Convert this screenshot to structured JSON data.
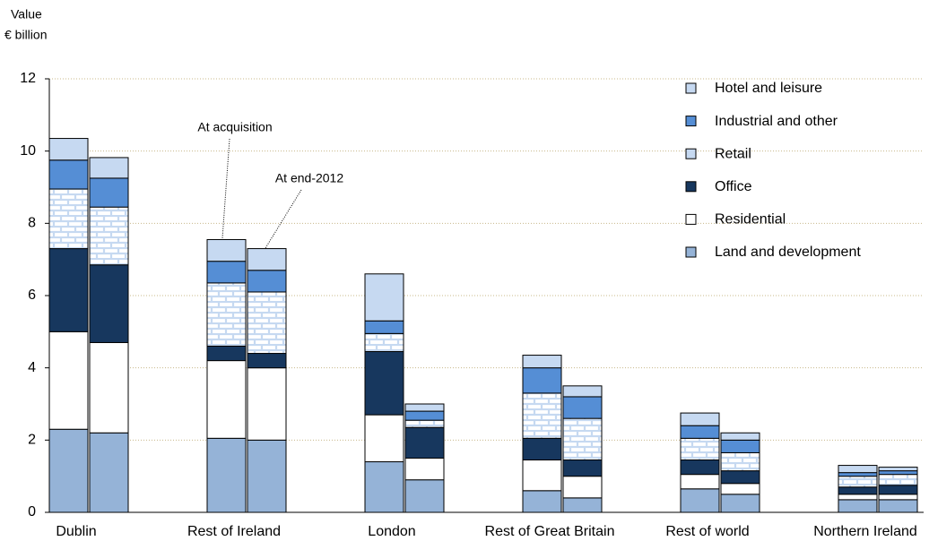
{
  "chart_data": {
    "type": "grouped_stacked_bar",
    "y_axis_label": [
      "Value",
      "€ billion"
    ],
    "categories": [
      "Dublin",
      "Rest of Ireland",
      "London",
      "Rest of Great Britain",
      "Rest of world",
      "Northern Ireland"
    ],
    "annotations": [
      "At acquisition",
      "At end-2012"
    ],
    "ylim": [
      0,
      12
    ],
    "yticks": [
      0,
      2,
      4,
      6,
      8,
      10,
      12
    ],
    "grid": true,
    "legend": "upper right",
    "series": [
      {
        "name": "Land and development",
        "color": "#95b3d7",
        "values": [
          [
            2.3,
            2.2
          ],
          [
            2.05,
            2.0
          ],
          [
            1.4,
            0.9
          ],
          [
            0.6,
            0.4
          ],
          [
            0.65,
            0.5
          ],
          [
            0.35,
            0.35
          ]
        ]
      },
      {
        "name": "Residential",
        "color": "#ffffff",
        "values": [
          [
            2.7,
            2.5
          ],
          [
            2.15,
            2.0
          ],
          [
            1.3,
            0.6
          ],
          [
            0.85,
            0.6
          ],
          [
            0.4,
            0.3
          ],
          [
            0.15,
            0.15
          ]
        ]
      },
      {
        "name": "Office",
        "color": "#17375e",
        "values": [
          [
            2.3,
            2.15
          ],
          [
            0.4,
            0.4
          ],
          [
            1.75,
            0.85
          ],
          [
            0.6,
            0.45
          ],
          [
            0.4,
            0.35
          ],
          [
            0.2,
            0.25
          ]
        ]
      },
      {
        "name": "Retail",
        "color": "#c6d9f1",
        "pattern": "brick",
        "values": [
          [
            1.65,
            1.6
          ],
          [
            1.75,
            1.7
          ],
          [
            0.5,
            0.2
          ],
          [
            1.25,
            1.15
          ],
          [
            0.6,
            0.5
          ],
          [
            0.3,
            0.3
          ]
        ]
      },
      {
        "name": "Industrial and other",
        "color": "#558ed5",
        "values": [
          [
            0.8,
            0.8
          ],
          [
            0.6,
            0.6
          ],
          [
            0.35,
            0.25
          ],
          [
            0.7,
            0.6
          ],
          [
            0.35,
            0.35
          ],
          [
            0.1,
            0.1
          ]
        ]
      },
      {
        "name": "Hotel and leisure",
        "color": "#c6d9f1",
        "values": [
          [
            0.6,
            0.57
          ],
          [
            0.6,
            0.6
          ],
          [
            1.3,
            0.2
          ],
          [
            0.35,
            0.3
          ],
          [
            0.35,
            0.2
          ],
          [
            0.2,
            0.1
          ]
        ]
      }
    ]
  }
}
